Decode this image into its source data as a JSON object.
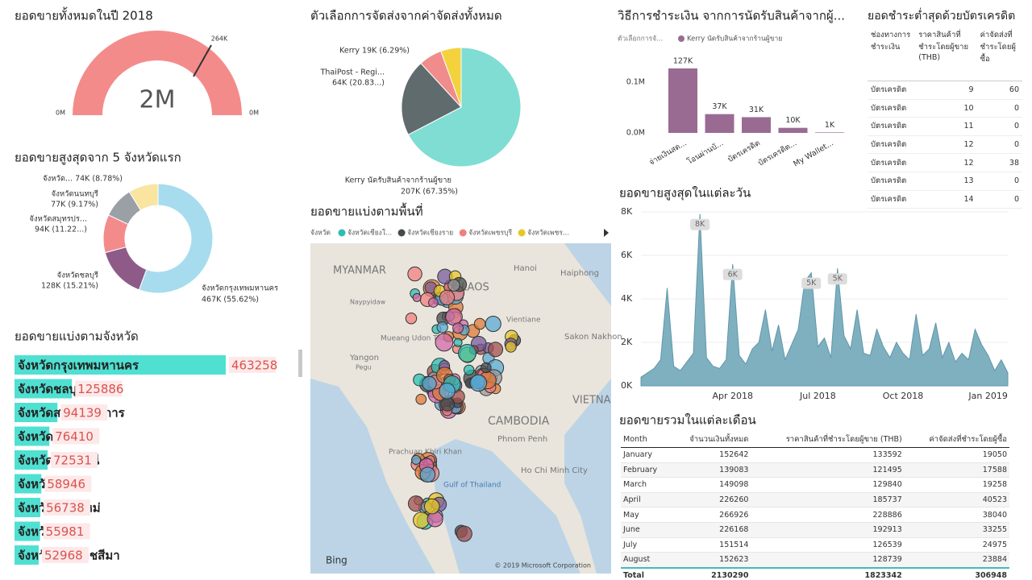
{
  "gauge": {
    "title": "ยอดขายทั้งหมดในปี 2018",
    "value_label": "2M",
    "min_label": "0M",
    "max_label": "0M",
    "target_label": "264K",
    "color": "#f48b8b"
  },
  "shipping": {
    "type": "pie",
    "title": "ตัวเลือกการจัดส่งจากค่าจัดส่งทั้งหมด",
    "values": [
      67.35,
      20.83,
      6.29,
      5.53
    ],
    "labels": [
      [
        "Kerry นัดรับสินค้าจากร้านผู้ขาย",
        "207K (67.35%)"
      ],
      [
        "ThaiPost - Regi...",
        "64K (20.83...)"
      ],
      [
        "Kerry 19K (6.29%)"
      ],
      null
    ],
    "colors": [
      "#80ddd3",
      "#5f6b6d",
      "#f08c8c",
      "#f3d23e"
    ]
  },
  "top5": {
    "type": "donut",
    "title": "ยอดขายสูงสุดจาก 5 จังหวัดแรก",
    "values": [
      55.62,
      15.21,
      11.22,
      9.17,
      8.78
    ],
    "labels": [
      [
        "จังหวัดกรุงเทพมหานคร",
        "467K (55.62%)"
      ],
      [
        "จังหวัดชลบุรี",
        "128K (15.21%)"
      ],
      [
        "จังหวัดสมุทรปร...",
        "94K (11.22...)"
      ],
      [
        "จังหวัดนนทบุรี",
        "77K (9.17%)"
      ],
      [
        "จังหวัด... 74K (8.78%)"
      ]
    ],
    "colors": [
      "#a6dcee",
      "#8e5b89",
      "#f48b8b",
      "#9aa0a6",
      "#f9e4a0"
    ]
  },
  "payment": {
    "type": "bar",
    "title": "วิธีการชำระเงิน จากการนัดรับสินค้าจากผู้...",
    "legend_title": "ตัวเลือกการจั...",
    "series_name": "Kerry นัดรับสินค้าจากร้านผู้ขาย",
    "categories": [
      "จ่ายเงินสด...",
      "โอนผ่านบั...",
      "บัตรเครดิต",
      "บัตรเครดิต...",
      "My Wallet..."
    ],
    "values": [
      127000,
      37000,
      31000,
      10000,
      1000
    ],
    "value_labels": [
      "127K",
      "37K",
      "31K",
      "10K",
      "1K"
    ],
    "color": "#9a6b92",
    "ylim": [
      0,
      130000
    ],
    "yticks": [
      {
        "value": 0,
        "label": "0.0M"
      },
      {
        "value": 100000,
        "label": "0.1M"
      }
    ]
  },
  "card_table": {
    "title": "ยอดชำระต่ำสุดด้วยบัตรเครดิต",
    "columns": [
      "ช่องทางการชำระเงิน",
      "ราคาสินค้าที่ชำระโดยผู้ขาย (THB)",
      "ค่าจัดส่งที่ชำระโดยผู้ซื้อ"
    ],
    "rows": [
      [
        "บัตรเครดิต",
        9,
        60
      ],
      [
        "บัตรเครดิต",
        10,
        0
      ],
      [
        "บัตรเครดิต",
        11,
        0
      ],
      [
        "บัตรเครดิต",
        12,
        0
      ],
      [
        "บัตรเครดิต",
        12,
        38
      ],
      [
        "บัตรเครดิต",
        13,
        0
      ],
      [
        "บัตรเครดิต",
        14,
        0
      ]
    ]
  },
  "provinces": {
    "type": "bar",
    "title": "ยอดขายแบ่งตามจังหวัด",
    "categories": [
      "จังหวัดกรุงเทพมหานคร",
      "จังหวัดชลบุรี",
      "จังหวัดสมุทรปราการ",
      "จังหวัดนนทบุรี",
      "จังหวัดปทุมธานี",
      "จังหวัดระยอง",
      "จังหวัดเชียงใหม่",
      "จังหวัดสงขลา",
      "จังหวัดนครราชสีมา"
    ],
    "values": [
      463258,
      125886,
      94139,
      76410,
      72531,
      58946,
      56738,
      55981,
      52968
    ],
    "color": "#4fe0d2"
  },
  "daily": {
    "type": "area",
    "title": "ยอดขายสูงสุดในแต่ละวัน",
    "categories": [
      null,
      null,
      null,
      null,
      null,
      null,
      null,
      null,
      null,
      null,
      null,
      null,
      null,
      null,
      "Apr 2018",
      null,
      null,
      null,
      null,
      null,
      null,
      null,
      null,
      null,
      null,
      null,
      null,
      "Jul 2018",
      null,
      null,
      null,
      null,
      null,
      null,
      null,
      null,
      null,
      null,
      null,
      null,
      "Oct 2018",
      null,
      null,
      null,
      null,
      null,
      null,
      null,
      null,
      null,
      null,
      null,
      null,
      "Jan 2019",
      null,
      null,
      null
    ],
    "values": [
      400,
      600,
      800,
      1200,
      4500,
      900,
      700,
      1100,
      1500,
      7900,
      1300,
      900,
      800,
      1200,
      5600,
      1400,
      1000,
      1700,
      2000,
      3500,
      1600,
      2800,
      1200,
      1900,
      2600,
      4800,
      5200,
      1800,
      2200,
      1300,
      5400,
      2300,
      1700,
      3500,
      1500,
      1400,
      2600,
      1800,
      1300,
      2000,
      1500,
      1200,
      3300,
      1400,
      1700,
      2900,
      1300,
      2000,
      1100,
      1500,
      1200,
      2600,
      1900,
      1400,
      700,
      1200,
      600
    ],
    "value_labels": [
      null,
      null,
      null,
      null,
      null,
      null,
      null,
      null,
      null,
      "8K",
      null,
      null,
      null,
      null,
      "6K",
      null,
      null,
      null,
      null,
      null,
      null,
      null,
      null,
      null,
      null,
      null,
      "5K",
      null,
      null,
      null,
      "5K",
      null,
      null,
      null,
      null,
      null,
      null,
      null,
      null,
      null,
      null,
      null,
      null,
      null,
      null,
      null,
      null,
      null,
      null,
      null,
      null,
      null,
      null,
      null,
      null,
      null,
      null
    ],
    "ylim": [
      0,
      8000
    ],
    "yticks": [
      {
        "value": 0,
        "label": "0K"
      },
      {
        "value": 2000,
        "label": "2K"
      },
      {
        "value": 4000,
        "label": "4K"
      },
      {
        "value": 6000,
        "label": "6K"
      },
      {
        "value": 8000,
        "label": "8K"
      }
    ],
    "color": "#7fb0c0"
  },
  "map": {
    "title": "ยอดขายแบ่งตามพื้นที่",
    "legend_title": "จังหวัด",
    "legend": [
      {
        "name": "จังหวัดเชียงใ...",
        "color": "#2bbfb3"
      },
      {
        "name": "จังหวัดเชียงราย",
        "color": "#444b4d"
      },
      {
        "name": "จังหวัดเพชรบุรี",
        "color": "#f08080"
      },
      {
        "name": "จังหวัดเพชร...",
        "color": "#e8c52b"
      }
    ],
    "labels": [
      "MYANMAR",
      "LAOS",
      "Hanoi",
      "Haiphong",
      "Naypyidaw",
      "Vientiane",
      "Sakon Nakhon",
      "Yangon",
      "Pegu",
      "Mueang Udon Thani",
      "CAMBODIA",
      "Phnom Penh",
      "VIETNA",
      "Ho Chi Minh City",
      "Prachuap Khiri Khan",
      "Gulf of Thailand"
    ],
    "logo": "Bing",
    "attribution": "© 2019 Microsoft Corporation"
  },
  "monthly": {
    "title": "ยอดขายรวมในแต่ละเดือน",
    "columns": [
      "Month",
      "จำนวนเงินทั้งหมด",
      "ราคาสินค้าที่ชำระโดยผู้ขาย (THB)",
      "ค่าจัดส่งที่ชำระโดยผู้ซื้อ"
    ],
    "rows": [
      [
        "January",
        152642,
        133592,
        19050
      ],
      [
        "February",
        139083,
        121495,
        17588
      ],
      [
        "March",
        149098,
        129840,
        19258
      ],
      [
        "April",
        226260,
        185737,
        40523
      ],
      [
        "May",
        266926,
        228886,
        38040
      ],
      [
        "June",
        226168,
        192913,
        33255
      ],
      [
        "July",
        151514,
        126539,
        24975
      ],
      [
        "August",
        152623,
        128739,
        23884
      ]
    ],
    "total": [
      "Total",
      2130290,
      1823342,
      306948
    ]
  }
}
